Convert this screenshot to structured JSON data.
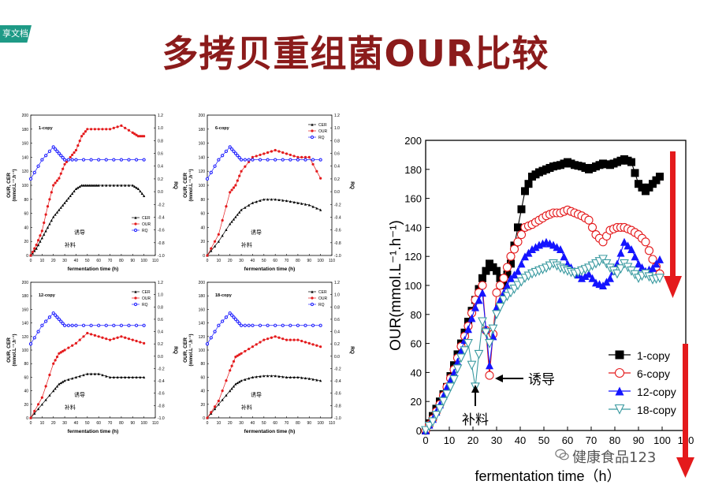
{
  "header": {
    "tag": "享文档",
    "title": "多拷贝重组菌OUR比较"
  },
  "watermark": {
    "text": "健康食品123",
    "icon": "wechat-icon"
  },
  "colors": {
    "title": "#8b1b1b",
    "black": "#000000",
    "red": "#e41a1c",
    "blue": "#1414ff",
    "teal": "#3a9aa0",
    "arrow": "#e41a1c"
  },
  "annotations": {
    "induce": "诱导",
    "feed": "补料"
  },
  "small_common": {
    "xlabel": "fermentation time (h)",
    "ylabel_left": "OUR, CER",
    "ylabel_left_units": "(mmol.L⁻¹.h⁻¹)",
    "ylabel_right": "RQ",
    "xticks": [
      "0",
      "10",
      "20",
      "30",
      "40",
      "50",
      "60",
      "70",
      "80",
      "90",
      "100",
      "110"
    ],
    "yticks_left": [
      "0",
      "20",
      "40",
      "60",
      "80",
      "100",
      "120",
      "140",
      "160",
      "180",
      "200"
    ],
    "yticks_right": [
      "-1.0",
      "-0.8",
      "-0.6",
      "-0.4",
      "-0.2",
      "0.0",
      "0.2",
      "0.4",
      "0.6",
      "0.8",
      "1.0",
      "1.2"
    ],
    "legend": [
      "CER",
      "OUR",
      "RQ"
    ]
  },
  "chart_data": [
    {
      "type": "scatter",
      "label": "1-copy",
      "xlabel": "fermentation time (h)",
      "ylabel": "OUR, CER (mmol.L⁻¹.h⁻¹)",
      "y2label": "RQ",
      "xlim": [
        0,
        110
      ],
      "ylim": [
        0,
        200
      ],
      "y2lim": [
        -1.0,
        1.2
      ],
      "legend": "lower-right",
      "series": [
        {
          "name": "CER",
          "x": [
            0,
            5,
            10,
            15,
            20,
            25,
            30,
            35,
            40,
            45,
            50,
            55,
            60,
            70,
            80,
            90,
            95,
            100
          ],
          "y": [
            0,
            10,
            25,
            40,
            55,
            65,
            75,
            85,
            95,
            100,
            100,
            100,
            100,
            100,
            100,
            100,
            95,
            85
          ]
        },
        {
          "name": "OUR",
          "x": [
            0,
            5,
            10,
            15,
            20,
            25,
            30,
            35,
            40,
            45,
            50,
            60,
            70,
            80,
            90,
            95,
            100
          ],
          "y": [
            0,
            15,
            35,
            70,
            100,
            110,
            130,
            140,
            150,
            170,
            180,
            180,
            180,
            185,
            175,
            170,
            170
          ]
        },
        {
          "name": "RQ",
          "x": [
            0,
            10,
            20,
            25,
            30,
            40,
            60,
            80,
            100
          ],
          "y": [
            0.2,
            0.5,
            0.7,
            0.6,
            0.5,
            0.5,
            0.5,
            0.5,
            0.5
          ]
        }
      ]
    },
    {
      "type": "scatter",
      "label": "6-copy",
      "xlabel": "fermentation time (h)",
      "ylabel": "OUR, CER (mmol.L⁻¹.h⁻¹)",
      "y2label": "RQ",
      "xlim": [
        0,
        110
      ],
      "ylim": [
        0,
        200
      ],
      "y2lim": [
        -1.0,
        1.2
      ],
      "legend": "top-right",
      "series": [
        {
          "name": "CER",
          "x": [
            0,
            10,
            20,
            25,
            30,
            40,
            50,
            60,
            70,
            80,
            90,
            100
          ],
          "y": [
            0,
            20,
            45,
            55,
            65,
            75,
            80,
            80,
            78,
            75,
            72,
            65
          ]
        },
        {
          "name": "OUR",
          "x": [
            0,
            10,
            20,
            25,
            30,
            40,
            50,
            60,
            70,
            80,
            90,
            100
          ],
          "y": [
            0,
            30,
            90,
            100,
            120,
            140,
            145,
            150,
            145,
            140,
            140,
            110
          ]
        },
        {
          "name": "RQ",
          "x": [
            0,
            10,
            20,
            25,
            30,
            40,
            60,
            80,
            100
          ],
          "y": [
            0.2,
            0.5,
            0.7,
            0.6,
            0.5,
            0.5,
            0.5,
            0.5,
            0.5
          ]
        }
      ]
    },
    {
      "type": "scatter",
      "label": "12-copy",
      "xlabel": "fermentation time (h)",
      "ylabel": "OUR, CER (mmol.L⁻¹.h⁻¹)",
      "y2label": "RQ",
      "xlim": [
        0,
        110
      ],
      "ylim": [
        0,
        200
      ],
      "y2lim": [
        -1.0,
        1.2
      ],
      "legend": "top-right",
      "series": [
        {
          "name": "CER",
          "x": [
            0,
            10,
            20,
            25,
            30,
            40,
            50,
            60,
            70,
            80,
            90,
            100
          ],
          "y": [
            0,
            20,
            40,
            50,
            55,
            60,
            65,
            65,
            60,
            60,
            60,
            60
          ]
        },
        {
          "name": "OUR",
          "x": [
            0,
            10,
            20,
            25,
            30,
            40,
            50,
            60,
            70,
            80,
            90,
            100
          ],
          "y": [
            0,
            30,
            80,
            95,
            100,
            110,
            125,
            120,
            115,
            120,
            115,
            110
          ]
        },
        {
          "name": "RQ",
          "x": [
            0,
            10,
            20,
            25,
            30,
            40,
            60,
            80,
            100
          ],
          "y": [
            0.2,
            0.5,
            0.7,
            0.6,
            0.5,
            0.5,
            0.5,
            0.5,
            0.5
          ]
        }
      ]
    },
    {
      "type": "scatter",
      "label": "18-copy",
      "xlabel": "fermentation time (h)",
      "ylabel": "OUR, CER (mmol.L⁻¹.h⁻¹)",
      "y2label": "RQ",
      "xlim": [
        0,
        110
      ],
      "ylim": [
        0,
        200
      ],
      "y2lim": [
        -1.0,
        1.2
      ],
      "legend": "top-right",
      "series": [
        {
          "name": "CER",
          "x": [
            0,
            10,
            20,
            25,
            30,
            40,
            50,
            60,
            70,
            80,
            90,
            100
          ],
          "y": [
            0,
            20,
            40,
            50,
            55,
            60,
            62,
            62,
            60,
            60,
            58,
            55
          ]
        },
        {
          "name": "OUR",
          "x": [
            0,
            10,
            20,
            25,
            30,
            40,
            50,
            60,
            70,
            80,
            90,
            100
          ],
          "y": [
            0,
            25,
            70,
            90,
            95,
            105,
            115,
            120,
            115,
            115,
            110,
            105
          ]
        },
        {
          "name": "RQ",
          "x": [
            0,
            10,
            20,
            25,
            30,
            40,
            60,
            80,
            100
          ],
          "y": [
            0.2,
            0.5,
            0.7,
            0.6,
            0.5,
            0.5,
            0.5,
            0.5,
            0.5
          ]
        }
      ]
    },
    {
      "type": "scatter",
      "label": "comparison",
      "xlabel": "fermentation time（h）",
      "ylabel": "OUR(mmol.L⁻¹.h⁻¹)",
      "xlim": [
        0,
        110
      ],
      "ylim": [
        0,
        200
      ],
      "legend": "lower-right",
      "xticks": [
        "0",
        "10",
        "20",
        "30",
        "40",
        "50",
        "60",
        "70",
        "80",
        "90",
        "100",
        "110"
      ],
      "yticks": [
        "0",
        "20",
        "40",
        "60",
        "80",
        "100",
        "120",
        "140",
        "160",
        "180",
        "200"
      ],
      "series": [
        {
          "name": "1-copy",
          "x": [
            0,
            3,
            6,
            9,
            12,
            15,
            18,
            21,
            24,
            27,
            30,
            33,
            36,
            39,
            42,
            45,
            48,
            51,
            54,
            57,
            60,
            63,
            66,
            69,
            72,
            75,
            78,
            81,
            84,
            87,
            90,
            93,
            96,
            99
          ],
          "y": [
            0,
            10,
            20,
            30,
            45,
            60,
            75,
            90,
            105,
            115,
            110,
            100,
            115,
            140,
            165,
            175,
            178,
            180,
            182,
            183,
            185,
            183,
            182,
            180,
            182,
            184,
            183,
            185,
            187,
            185,
            170,
            165,
            170,
            175
          ]
        },
        {
          "name": "6-copy",
          "x": [
            0,
            3,
            6,
            9,
            12,
            15,
            18,
            21,
            24,
            27,
            30,
            33,
            36,
            39,
            42,
            45,
            48,
            51,
            54,
            57,
            60,
            63,
            66,
            69,
            72,
            75,
            78,
            81,
            84,
            87,
            90,
            93,
            96,
            99
          ],
          "y": [
            0,
            8,
            18,
            30,
            42,
            58,
            72,
            90,
            100,
            38,
            95,
            105,
            120,
            130,
            140,
            142,
            145,
            148,
            150,
            150,
            152,
            150,
            148,
            145,
            135,
            130,
            138,
            140,
            140,
            138,
            135,
            130,
            118,
            108
          ]
        },
        {
          "name": "12-copy",
          "x": [
            0,
            3,
            6,
            9,
            12,
            15,
            18,
            21,
            24,
            27,
            30,
            33,
            36,
            39,
            42,
            45,
            48,
            51,
            54,
            57,
            60,
            63,
            66,
            69,
            72,
            75,
            78,
            81,
            84,
            87,
            90,
            93,
            96,
            99
          ],
          "y": [
            0,
            8,
            18,
            30,
            40,
            55,
            70,
            85,
            95,
            45,
            85,
            95,
            105,
            110,
            120,
            125,
            128,
            130,
            128,
            125,
            115,
            110,
            105,
            108,
            102,
            100,
            105,
            115,
            130,
            125,
            115,
            110,
            112,
            118
          ]
        },
        {
          "name": "18-copy",
          "x": [
            0,
            3,
            6,
            9,
            12,
            15,
            18,
            21,
            24,
            27,
            30,
            33,
            36,
            39,
            42,
            45,
            48,
            51,
            54,
            57,
            60,
            63,
            66,
            69,
            72,
            75,
            78,
            81,
            84,
            87,
            90,
            93,
            96,
            99
          ],
          "y": [
            0,
            6,
            15,
            25,
            35,
            50,
            60,
            30,
            75,
            60,
            80,
            90,
            95,
            100,
            105,
            108,
            110,
            112,
            115,
            112,
            110,
            108,
            110,
            112,
            115,
            118,
            112,
            108,
            115,
            110,
            105,
            108,
            104,
            105
          ]
        }
      ]
    }
  ]
}
